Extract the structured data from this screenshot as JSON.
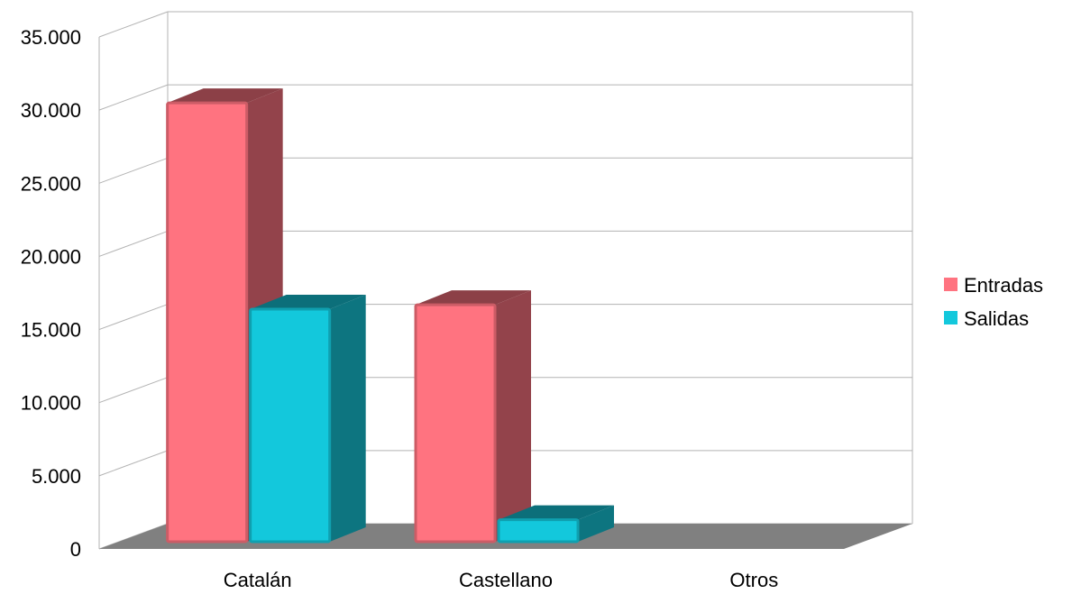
{
  "chart_data": {
    "type": "bar",
    "title": "",
    "xlabel": "",
    "ylabel": "",
    "categories": [
      "Catalán",
      "Castellano",
      "Otros"
    ],
    "series": [
      {
        "name": "Entradas",
        "values": [
          30000,
          16200,
          0
        ],
        "color": "#ff7380",
        "side_color": "#93434b"
      },
      {
        "name": "Salidas",
        "values": [
          15900,
          1500,
          0
        ],
        "color": "#13c8dc",
        "side_color": "#0d7580"
      }
    ],
    "ylim": [
      0,
      35000
    ],
    "y_ticks": [
      "0",
      "5.000",
      "10.000",
      "15.000",
      "20.000",
      "25.000",
      "30.000",
      "35.000"
    ],
    "y_tick_values": [
      0,
      5000,
      10000,
      15000,
      20000,
      25000,
      30000,
      35000
    ],
    "grid": true,
    "legend_position": "right",
    "floor_color": "#808080",
    "view": "3d"
  }
}
